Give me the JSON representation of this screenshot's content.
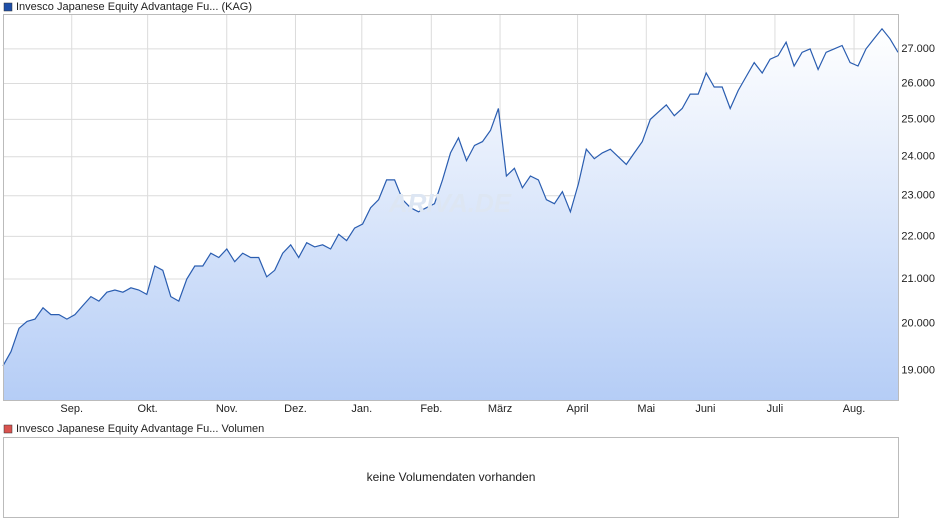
{
  "chart_data": {
    "type": "line",
    "title": "Invesco Japanese Equity Advantage Fu... (KAG)",
    "watermark": "ARIVA.DE",
    "log_scale": true,
    "grid": true,
    "series": [
      {
        "name": "Invesco Japanese Equity Advantage Fu... (KAG)",
        "color": "#2a5db0",
        "values": [
          19100,
          19400,
          19900,
          20050,
          20100,
          20350,
          20200,
          20200,
          20100,
          20200,
          20400,
          20600,
          20500,
          20700,
          20750,
          20700,
          20800,
          20750,
          20650,
          21300,
          21200,
          20600,
          20500,
          21000,
          21300,
          21300,
          21600,
          21500,
          21700,
          21400,
          21600,
          21500,
          21500,
          21050,
          21200,
          21600,
          21800,
          21500,
          21850,
          21750,
          21800,
          21700,
          22050,
          21900,
          22200,
          22300,
          22700,
          22900,
          23400,
          23400,
          22900,
          22700,
          22600,
          22700,
          22800,
          23400,
          24100,
          24500,
          23900,
          24300,
          24400,
          24700,
          25300,
          23500,
          23700,
          23200,
          23500,
          23400,
          22900,
          22800,
          23100,
          22600,
          23300,
          24200,
          23950,
          24100,
          24200,
          24000,
          23800,
          24100,
          24400,
          25000,
          25200,
          25400,
          25100,
          25300,
          25700,
          25700,
          26300,
          25900,
          25900,
          25300,
          25800,
          26200,
          26600,
          26300,
          26700,
          26800,
          27200,
          26500,
          26900,
          27000,
          26400,
          26900,
          27000,
          27100,
          26600,
          26500,
          27000,
          27300,
          27600,
          27300,
          26900
        ]
      }
    ],
    "xticks": [
      {
        "value": 8.6,
        "label": "Sep."
      },
      {
        "value": 18.1,
        "label": "Okt."
      },
      {
        "value": 28,
        "label": "Nov."
      },
      {
        "value": 36.6,
        "label": "Dez."
      },
      {
        "value": 44.9,
        "label": "Jan."
      },
      {
        "value": 53.6,
        "label": "Feb."
      },
      {
        "value": 62.2,
        "label": "März"
      },
      {
        "value": 71.9,
        "label": "April"
      },
      {
        "value": 80.5,
        "label": "Mai"
      },
      {
        "value": 87.9,
        "label": "Juni"
      },
      {
        "value": 96.6,
        "label": "Juli"
      },
      {
        "value": 106.5,
        "label": "Aug."
      }
    ],
    "ylim": [
      18400,
      28050
    ],
    "yticks": [
      {
        "value": 19000,
        "label": "19.000"
      },
      {
        "value": 20000,
        "label": "20.000"
      },
      {
        "value": 21000,
        "label": "21.000"
      },
      {
        "value": 22000,
        "label": "22.000"
      },
      {
        "value": 23000,
        "label": "23.000"
      },
      {
        "value": 24000,
        "label": "24.000"
      },
      {
        "value": 25000,
        "label": "25.000"
      },
      {
        "value": 26000,
        "label": "26.000"
      },
      {
        "value": 27000,
        "label": "27.000"
      }
    ]
  },
  "volume_panel": {
    "legend": "Invesco Japanese Equity Advantage Fu... Volumen",
    "message": "keine Volumendaten vorhanden"
  }
}
